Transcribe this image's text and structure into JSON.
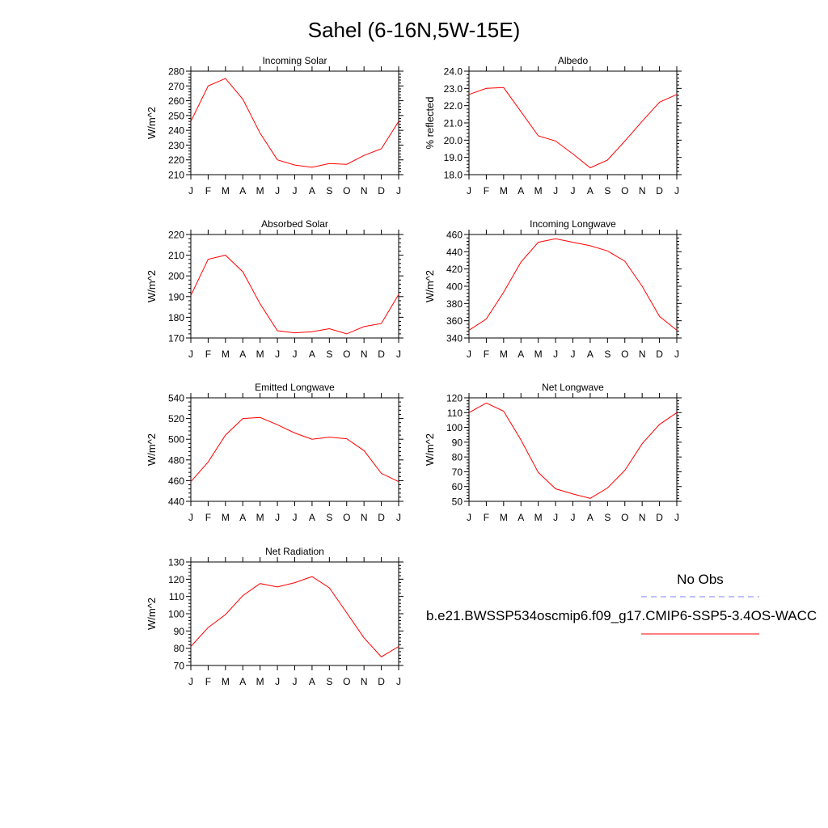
{
  "figure": {
    "title": "Sahel (6-16N,5W-15E)"
  },
  "legend": {
    "obs_label": "No Obs",
    "obs_color": "#8080ff",
    "model_label": "b.e21.BWSSP534oscmip6.f09_g17.CMIP6-SSP5-3.4OS-WACC",
    "model_color": "#ff0000"
  },
  "chart_data": [
    {
      "type": "line",
      "title": "Incoming Solar",
      "ylabel": "W/m^2",
      "xlabel": "",
      "x": [
        "J",
        "F",
        "M",
        "A",
        "M",
        "J",
        "J",
        "A",
        "S",
        "O",
        "N",
        "D",
        "J"
      ],
      "ylim": [
        210,
        280
      ],
      "yticks": [
        210,
        220,
        230,
        240,
        250,
        260,
        270,
        280
      ],
      "ytick_labels": [
        "210",
        "220",
        "230",
        "240",
        "250",
        "260",
        "270",
        "280"
      ],
      "series": [
        {
          "color": "#ff0000",
          "values": [
            246,
            270,
            275,
            261,
            238,
            220,
            216.5,
            215,
            217.5,
            217,
            223,
            227.5,
            246
          ]
        }
      ]
    },
    {
      "type": "line",
      "title": "Albedo",
      "ylabel": "% reflected",
      "xlabel": "",
      "x": [
        "J",
        "F",
        "M",
        "A",
        "M",
        "J",
        "J",
        "A",
        "S",
        "O",
        "N",
        "D",
        "J"
      ],
      "ylim": [
        18,
        24
      ],
      "yticks": [
        18,
        19,
        20,
        21,
        22,
        23,
        24
      ],
      "ytick_labels": [
        "18.0",
        "19.0",
        "20.0",
        "21.0",
        "22.0",
        "23.0",
        "24.0"
      ],
      "series": [
        {
          "color": "#ff0000",
          "values": [
            22.65,
            23.0,
            23.05,
            21.65,
            20.25,
            19.95,
            19.2,
            18.4,
            18.85,
            19.95,
            21.1,
            22.2,
            22.65
          ]
        }
      ]
    },
    {
      "type": "line",
      "title": "Absorbed Solar",
      "ylabel": "W/m^2",
      "xlabel": "",
      "x": [
        "J",
        "F",
        "M",
        "A",
        "M",
        "J",
        "J",
        "A",
        "S",
        "O",
        "N",
        "D",
        "J"
      ],
      "ylim": [
        170,
        220
      ],
      "yticks": [
        170,
        180,
        190,
        200,
        210,
        220
      ],
      "ytick_labels": [
        "170",
        "180",
        "190",
        "200",
        "210",
        "220"
      ],
      "series": [
        {
          "color": "#ff0000",
          "values": [
            190.5,
            208,
            210,
            202,
            186.5,
            173.5,
            172.5,
            173,
            174.5,
            172,
            175.5,
            177,
            191
          ]
        }
      ]
    },
    {
      "type": "line",
      "title": "Incoming Longwave",
      "ylabel": "W/m^2",
      "xlabel": "",
      "x": [
        "J",
        "F",
        "M",
        "A",
        "M",
        "J",
        "J",
        "A",
        "S",
        "O",
        "N",
        "D",
        "J"
      ],
      "ylim": [
        340,
        460
      ],
      "yticks": [
        340,
        360,
        380,
        400,
        420,
        440,
        460
      ],
      "ytick_labels": [
        "340",
        "360",
        "380",
        "400",
        "420",
        "440",
        "460"
      ],
      "series": [
        {
          "color": "#ff0000",
          "values": [
            349,
            362,
            393,
            428,
            451,
            455,
            451,
            447,
            441,
            429,
            400,
            365,
            349
          ]
        }
      ]
    },
    {
      "type": "line",
      "title": "Emitted Longwave",
      "ylabel": "W/m^2",
      "xlabel": "",
      "x": [
        "J",
        "F",
        "M",
        "A",
        "M",
        "J",
        "J",
        "A",
        "S",
        "O",
        "N",
        "D",
        "J"
      ],
      "ylim": [
        440,
        540
      ],
      "yticks": [
        440,
        460,
        480,
        500,
        520,
        540
      ],
      "ytick_labels": [
        "440",
        "460",
        "480",
        "500",
        "520",
        "540"
      ],
      "series": [
        {
          "color": "#ff0000",
          "values": [
            459,
            478,
            504,
            520,
            521,
            514,
            506,
            500,
            502,
            500.5,
            489,
            467,
            459
          ]
        }
      ]
    },
    {
      "type": "line",
      "title": "Net Longwave",
      "ylabel": "W/m^2",
      "xlabel": "",
      "x": [
        "J",
        "F",
        "M",
        "A",
        "M",
        "J",
        "J",
        "A",
        "S",
        "O",
        "N",
        "D",
        "J"
      ],
      "ylim": [
        50,
        120
      ],
      "yticks": [
        50,
        60,
        70,
        80,
        90,
        100,
        110,
        120
      ],
      "ytick_labels": [
        "50",
        "60",
        "70",
        "80",
        "90",
        "100",
        "110",
        "120"
      ],
      "series": [
        {
          "color": "#ff0000",
          "values": [
            110,
            116.5,
            111,
            91.5,
            69.5,
            58.5,
            55,
            52,
            59,
            71,
            89,
            102,
            110
          ]
        }
      ]
    },
    {
      "type": "line",
      "title": "Net Radiation",
      "ylabel": "W/m^2",
      "xlabel": "",
      "x": [
        "J",
        "F",
        "M",
        "A",
        "M",
        "J",
        "J",
        "A",
        "S",
        "O",
        "N",
        "D",
        "J"
      ],
      "ylim": [
        70,
        130
      ],
      "yticks": [
        70,
        80,
        90,
        100,
        110,
        120,
        130
      ],
      "ytick_labels": [
        "70",
        "80",
        "90",
        "100",
        "110",
        "120",
        "130"
      ],
      "series": [
        {
          "color": "#ff0000",
          "values": [
            81,
            92,
            99.5,
            110.5,
            117.5,
            115.5,
            118,
            121.5,
            115,
            100.5,
            86,
            75,
            81
          ]
        }
      ]
    }
  ]
}
